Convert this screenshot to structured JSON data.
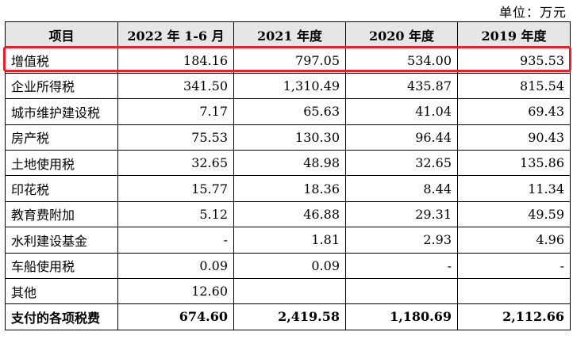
{
  "unit_label": "单位：万元",
  "header": [
    "项目",
    "2022 年 1-6 月",
    "2021 年度",
    "2020 年度",
    "2019 年度"
  ],
  "rows": [
    {
      "label": "增值税",
      "values": [
        "184.16",
        "797.05",
        "534.00",
        "935.53"
      ]
    },
    {
      "label": "企业所得税",
      "values": [
        "341.50",
        "1,310.49",
        "435.87",
        "815.54"
      ]
    },
    {
      "label": "城市维护建设税",
      "values": [
        "7.17",
        "65.63",
        "41.04",
        "69.43"
      ]
    },
    {
      "label": "房产税",
      "values": [
        "75.53",
        "130.30",
        "96.44",
        "90.43"
      ]
    },
    {
      "label": "土地使用税",
      "values": [
        "32.65",
        "48.98",
        "32.65",
        "135.86"
      ]
    },
    {
      "label": "印花税",
      "values": [
        "15.77",
        "18.36",
        "8.44",
        "11.34"
      ]
    },
    {
      "label": "教育费附加",
      "values": [
        "5.12",
        "46.88",
        "29.31",
        "49.59"
      ]
    },
    {
      "label": "水利建设基金",
      "values": [
        "-",
        "1.81",
        "2.93",
        "4.96"
      ]
    },
    {
      "label": "车船使用税",
      "values": [
        "0.09",
        "0.09",
        "-",
        "-"
      ]
    },
    {
      "label": "其他",
      "values": [
        "12.60",
        "",
        "",
        ""
      ]
    }
  ],
  "total": {
    "label": "支付的各项税费",
    "values": [
      "674.60",
      "2,419.58",
      "1,180.69",
      "2,112.66"
    ]
  },
  "highlight_color": "#e8202a"
}
